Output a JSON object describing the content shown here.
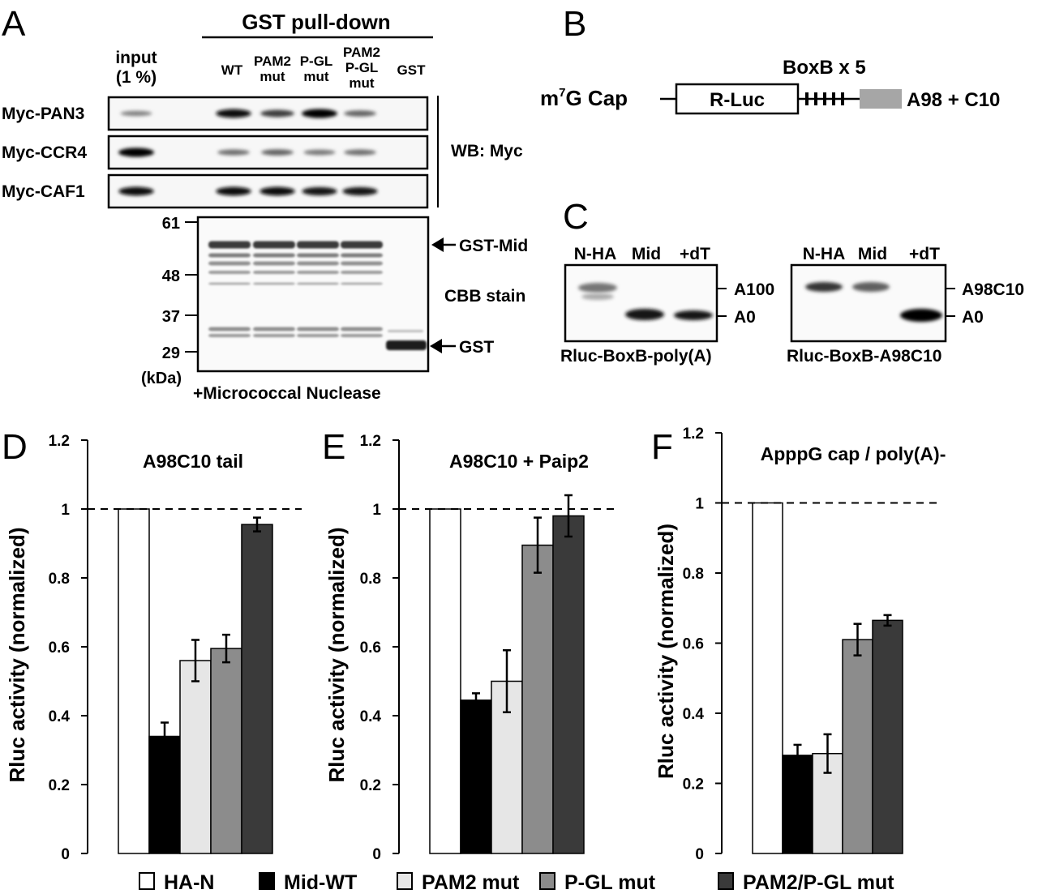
{
  "panel_letters": {
    "A": "A",
    "B": "B",
    "C": "C",
    "D": "D",
    "E": "E",
    "F": "F"
  },
  "panelA": {
    "pulldown_header": "GST pull-down",
    "input_label_1": "input",
    "input_label_2": "(1 %)",
    "lane_labels": [
      {
        "l1": "WT"
      },
      {
        "l1": "PAM2",
        "l2": "mut"
      },
      {
        "l1": "P-GL",
        "l2": "mut"
      },
      {
        "l1": "PAM2",
        "l2": "P-GL",
        "l3": "mut"
      },
      {
        "l1": "GST"
      }
    ],
    "blot_rows": [
      {
        "label": "Myc-PAN3",
        "bands": [
          0.35,
          0,
          0.95,
          0.7,
          1.0,
          0.5,
          0
        ]
      },
      {
        "label": "Myc-CCR4",
        "bands": [
          1.0,
          0,
          0.45,
          0.5,
          0.4,
          0.45,
          0
        ]
      },
      {
        "label": "Myc-CAF1",
        "bands": [
          0.95,
          0,
          0.95,
          0.95,
          0.9,
          0.9,
          0
        ]
      }
    ],
    "wb_label": "WB: Myc",
    "mw_markers": [
      "61",
      "48",
      "37",
      "29"
    ],
    "kda": "(kDa)",
    "gst_mid": "GST-Mid",
    "cbb": "CBB stain",
    "gst": "GST",
    "nuclease": "+Micrococcal Nuclease"
  },
  "panelB": {
    "boxb": "BoxB x 5",
    "cap_m": "m",
    "cap_sup": "7",
    "cap_rest": "G Cap",
    "rluc": "R-Luc",
    "tail": "A98 + C10"
  },
  "panelC": {
    "gel1": {
      "lanes": [
        "N-HA",
        "Mid",
        "+dT"
      ],
      "marker_top": "A100",
      "marker_bottom": "A0",
      "caption": "Rluc-BoxB-poly(A)"
    },
    "gel2": {
      "lanes": [
        "N-HA",
        "Mid",
        "+dT"
      ],
      "marker_top": "A98C10",
      "marker_bottom": "A0",
      "caption": "Rluc-BoxB-A98C10"
    }
  },
  "legend": [
    "HA-N",
    "Mid-WT",
    "PAM2 mut",
    "P-GL mut",
    "PAM2/P-GL mut"
  ],
  "colors": {
    "HA-N": "#ffffff",
    "Mid-WT": "#000000",
    "PAM2 mut": "#e6e6e6",
    "P-GL mut": "#8c8c8c",
    "PAM2/P-GL mut": "#3a3a3a"
  },
  "chart_data": [
    {
      "type": "bar",
      "title": "A98C10 tail",
      "ylabel": "Rluc activity (normalized)",
      "ylim": [
        0,
        1.2
      ],
      "yticks": [
        "0",
        "0.2",
        "0.4",
        "0.6",
        "0.8",
        "1",
        "1.2"
      ],
      "categories": [
        "HA-N",
        "Mid-WT",
        "PAM2 mut",
        "P-GL mut",
        "PAM2/P-GL mut"
      ],
      "values": [
        1.0,
        0.34,
        0.56,
        0.595,
        0.955
      ],
      "errors": [
        0,
        0.04,
        0.06,
        0.04,
        0.02
      ],
      "reference_line": 1
    },
    {
      "type": "bar",
      "title": "A98C10 + Paip2",
      "ylabel": "Rluc activity (normalized)",
      "ylim": [
        0,
        1.2
      ],
      "yticks": [
        "0",
        "0.2",
        "0.4",
        "0.6",
        "0.8",
        "1",
        "1.2"
      ],
      "categories": [
        "HA-N",
        "Mid-WT",
        "PAM2 mut",
        "P-GL mut",
        "PAM2/P-GL mut"
      ],
      "values": [
        1.0,
        0.445,
        0.5,
        0.895,
        0.98
      ],
      "errors": [
        0,
        0.02,
        0.09,
        0.08,
        0.06
      ],
      "reference_line": 1
    },
    {
      "type": "bar",
      "title": "ApppG cap / poly(A)-",
      "ylabel": "Rluc activity (normalized)",
      "ylim": [
        0,
        1.2
      ],
      "yticks": [
        "0",
        "0.2",
        "0.4",
        "0.6",
        "0.8",
        "1",
        "1.2"
      ],
      "categories": [
        "HA-N",
        "Mid-WT",
        "PAM2 mut",
        "P-GL mut",
        "PAM2/P-GL mut"
      ],
      "values": [
        1.0,
        0.28,
        0.285,
        0.61,
        0.665
      ],
      "errors": [
        0,
        0.03,
        0.055,
        0.045,
        0.015
      ],
      "reference_line": 1
    }
  ]
}
